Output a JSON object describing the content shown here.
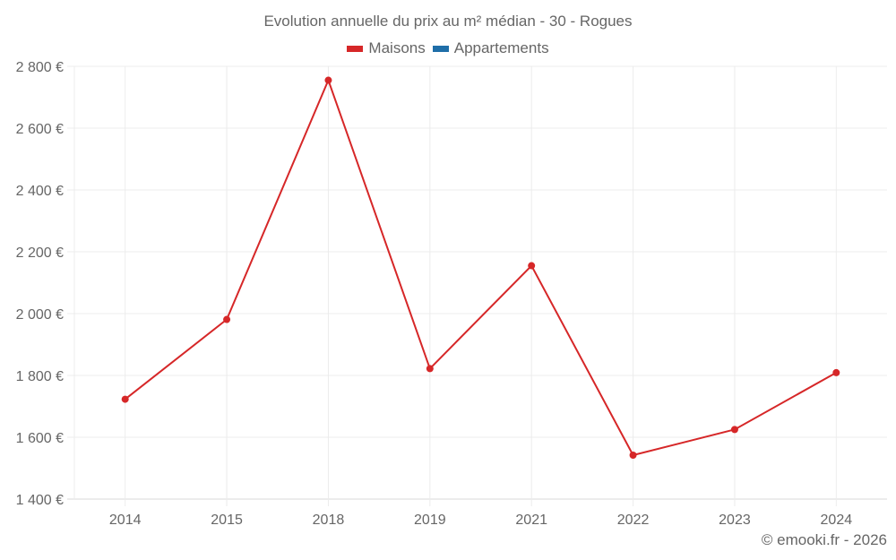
{
  "chart_data": {
    "type": "line",
    "title": "Evolution annuelle du prix au m² médian - 30 - Rogues",
    "xlabel": "",
    "ylabel": "",
    "categories": [
      "2014",
      "2015",
      "2018",
      "2019",
      "2021",
      "2022",
      "2023",
      "2024"
    ],
    "series": [
      {
        "name": "Maisons",
        "color": "#d62728",
        "values": [
          1723,
          1981,
          2755,
          1822,
          2155,
          1542,
          1625,
          1809
        ]
      },
      {
        "name": "Appartements",
        "color": "#1f6ea8",
        "values": []
      }
    ],
    "ylim": [
      1400,
      2800
    ],
    "yticks": [
      1400,
      1600,
      1800,
      2000,
      2200,
      2400,
      2600,
      2800
    ],
    "ytick_labels": [
      "1 400 €",
      "1 600 €",
      "1 800 €",
      "2 000 €",
      "2 200 €",
      "2 400 €",
      "2 600 €",
      "2 800 €"
    ],
    "grid": true,
    "legend_position": "top"
  },
  "header": {
    "title": "Evolution annuelle du prix au m² médian - 30 - Rogues"
  },
  "legend": {
    "items": [
      {
        "label": "Maisons",
        "color": "#d62728"
      },
      {
        "label": "Appartements",
        "color": "#1f6ea8"
      }
    ]
  },
  "footer": {
    "credit": "© emooki.fr - 2026"
  }
}
